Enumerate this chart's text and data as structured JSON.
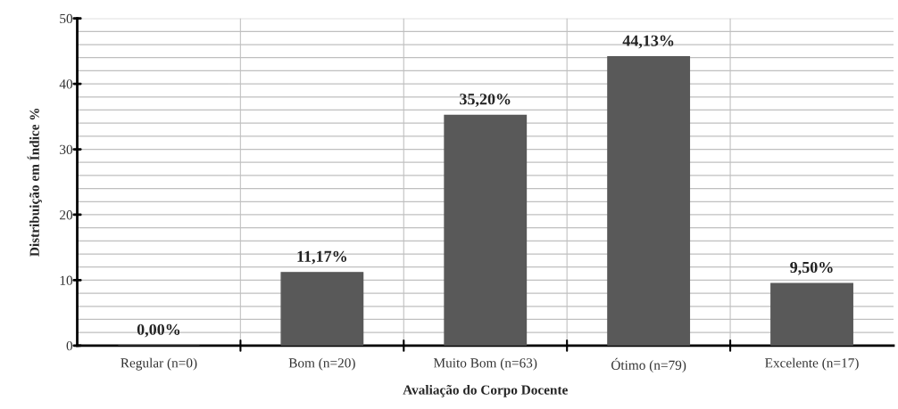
{
  "chart_data": {
    "type": "bar",
    "categories": [
      "Regular (n=0)",
      "Bom (n=20)",
      "Muito Bom (n=63)",
      "Ótimo (n=79)",
      "Excelente (n=17)"
    ],
    "values": [
      0,
      11.17,
      35.2,
      44.13,
      9.5
    ],
    "value_labels": [
      "0,00%",
      "11,17%",
      "35,20%",
      "44,13%",
      "9,50%"
    ],
    "color": "#595959",
    "xlabel": "Avaliação do Corpo Docente",
    "ylabel": "Distribuição em Índice %",
    "ylim": [
      0,
      50
    ],
    "yticks": [
      0,
      {
        "value": 2,
        "label": null
      },
      {
        "value": 4,
        "label": null
      },
      {
        "value": 6,
        "label": null
      },
      {
        "value": 8,
        "label": null
      },
      10,
      {
        "value": 12,
        "label": null
      },
      {
        "value": 14,
        "label": null
      },
      {
        "value": 16,
        "label": null
      },
      {
        "value": 18,
        "label": null
      },
      20,
      {
        "value": 22,
        "label": null
      },
      {
        "value": 24,
        "label": null
      },
      {
        "value": 26,
        "label": null
      },
      {
        "value": 28,
        "label": null
      },
      30,
      {
        "value": 32,
        "label": null
      },
      {
        "value": 34,
        "label": null
      },
      {
        "value": 36,
        "label": null
      },
      {
        "value": 38,
        "label": null
      },
      40,
      {
        "value": 42,
        "label": null
      },
      {
        "value": 44,
        "label": null
      },
      {
        "value": 46,
        "label": null
      },
      {
        "value": 48,
        "label": null
      },
      50
    ],
    "grid": true
  }
}
